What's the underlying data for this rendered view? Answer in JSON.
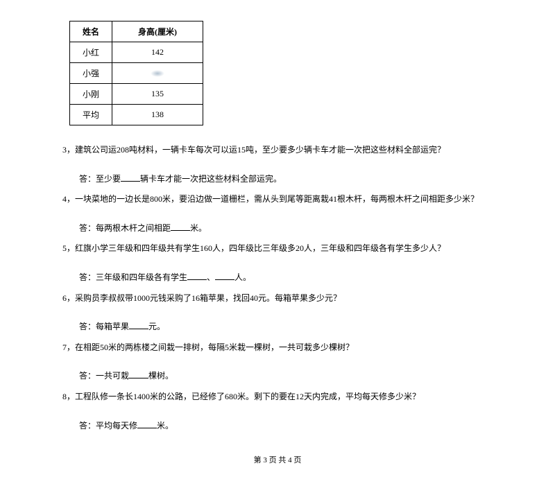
{
  "table": {
    "headers": {
      "name": "姓名",
      "height": "身高(厘米)"
    },
    "rows": [
      {
        "name": "小红",
        "height": "142"
      },
      {
        "name": "小强",
        "height": ""
      },
      {
        "name": "小刚",
        "height": "135"
      },
      {
        "name": "平均",
        "height": "138"
      }
    ]
  },
  "q3": {
    "text": "3，建筑公司运208吨材料，一辆卡车每次可以运15吨，至少要多少辆卡车才能一次把这些材料全部运完？",
    "ans_pre": "答：至少要",
    "ans_post": "辆卡车才能一次把这些材料全部运完。"
  },
  "q4": {
    "text": "4，一块菜地的一边长是800米，要沿边做一道栅栏，需从头到尾等距离栽41根木杆，每两根木杆之间相距多少米？",
    "ans_pre": "答：每两根木杆之间相距",
    "ans_post": "米。"
  },
  "q5": {
    "text": "5，红旗小学三年级和四年级共有学生160人，四年级比三年级多20人，三年级和四年级各有学生多少人？",
    "ans_pre": "答：三年级和四年级各有学生",
    "ans_mid": "、",
    "ans_post": "人。"
  },
  "q6": {
    "text": "6，采购员李叔叔带1000元钱采购了16箱苹果，找回40元。每箱苹果多少元？",
    "ans_pre": "答：每箱苹果",
    "ans_post": "元。"
  },
  "q7": {
    "text": "7，在相距50米的两栋楼之间栽一排树，每隔5米栽一棵树，一共可栽多少棵树？",
    "ans_pre": "答：一共可栽",
    "ans_post": "棵树。"
  },
  "q8": {
    "text": "8，工程队修一条长1400米的公路，已经修了680米。剩下的要在12天内完成，平均每天修多少米？",
    "ans_pre": "答：平均每天修",
    "ans_post": "米。"
  },
  "footer": "第 3 页 共 4 页"
}
